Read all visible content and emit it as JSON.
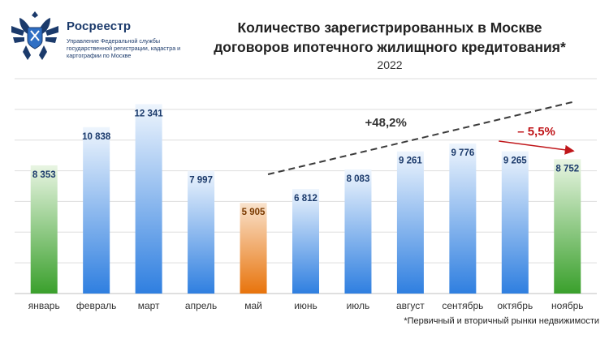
{
  "header": {
    "logo_name": "Росреестр",
    "logo_subtitle": "Управление Федеральной службы государственной регистрации, кадастра и картографии по Москве",
    "title_line1": "Количество зарегистрированных в Москве",
    "title_line2": "договоров ипотечного жилищного кредитования*",
    "year": "2022"
  },
  "footnote": "*Первичный и вторичный рынки недвижимости",
  "colors": {
    "blue": "#2f7fe0",
    "green": "#3aa02c",
    "orange": "#e8740c",
    "red": "#c0161a",
    "dashed": "#3a3a3a"
  },
  "chart_data": {
    "type": "bar",
    "categories": [
      "январь",
      "февраль",
      "март",
      "апрель",
      "май",
      "июнь",
      "июль",
      "август",
      "сентябрь",
      "октябрь",
      "ноябрь"
    ],
    "values": [
      8353,
      10838,
      12341,
      7997,
      5905,
      6812,
      8083,
      9261,
      9776,
      9265,
      8752
    ],
    "value_labels": [
      "8 353",
      "10 838",
      "12 341",
      "7 997",
      "5 905",
      "6 812",
      "8 083",
      "9 261",
      "9 776",
      "9 265",
      "8 752"
    ],
    "bar_colors": [
      "green",
      "blue",
      "blue",
      "blue",
      "orange",
      "blue",
      "blue",
      "blue",
      "blue",
      "blue",
      "green"
    ],
    "ylim": [
      0,
      14000
    ],
    "grid": true,
    "annotations": [
      {
        "text": "+48,2%",
        "color": "dashed",
        "from_category": "май",
        "to_category": "ноябрь",
        "style": "dashed"
      },
      {
        "text": "– 5,5%",
        "color": "red",
        "from_category": "октябрь",
        "to_category": "ноябрь",
        "style": "arrow"
      }
    ]
  }
}
